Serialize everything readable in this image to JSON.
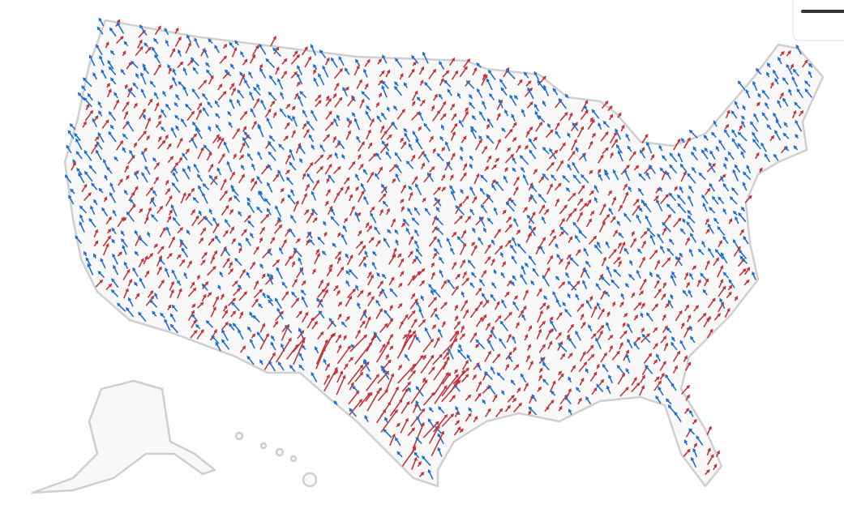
{
  "map": {
    "arrow_colors": [
      "#c4343c",
      "#1f6fd1"
    ]
  }
}
